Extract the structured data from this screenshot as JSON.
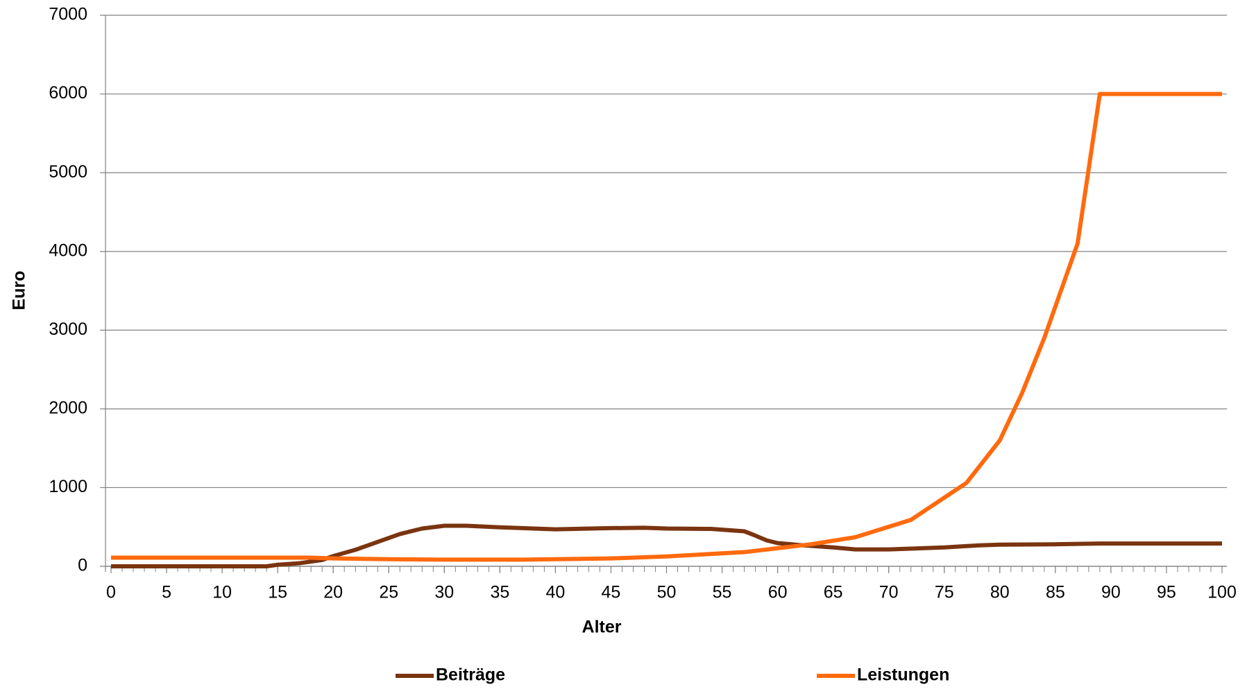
{
  "chart_data": {
    "type": "line",
    "x_label": "Alter",
    "y_label": "Euro",
    "xlim": [
      0,
      100
    ],
    "xticks": [
      0,
      5,
      10,
      15,
      20,
      25,
      30,
      35,
      40,
      45,
      50,
      55,
      60,
      65,
      70,
      75,
      80,
      85,
      90,
      95,
      100
    ],
    "ylim": [
      0,
      7000
    ],
    "yticks": [
      0,
      1000,
      2000,
      3000,
      4000,
      5000,
      6000,
      7000
    ],
    "grid": true,
    "legend": "bottom",
    "series": [
      {
        "name": "Beiträge",
        "color": "#7a3410",
        "x": [
          0,
          14,
          15,
          17,
          19,
          20,
          22,
          24,
          26,
          28,
          30,
          32,
          35,
          40,
          45,
          48,
          50,
          54,
          57,
          58,
          59,
          60,
          62,
          65,
          67,
          70,
          72,
          75,
          78,
          80,
          85,
          89,
          100
        ],
        "values": [
          0,
          0,
          20,
          40,
          80,
          130,
          210,
          310,
          410,
          480,
          515,
          515,
          495,
          470,
          485,
          490,
          480,
          475,
          445,
          390,
          330,
          295,
          270,
          240,
          215,
          215,
          225,
          240,
          265,
          275,
          280,
          290,
          290
        ]
      },
      {
        "name": "Leistungen",
        "color": "#ff6a0e",
        "x": [
          0,
          18,
          20,
          25,
          30,
          37,
          40,
          45,
          50,
          55,
          57,
          60,
          63,
          67,
          72,
          77,
          80,
          82,
          84,
          87,
          89,
          100
        ],
        "values": [
          110,
          110,
          100,
          90,
          85,
          85,
          90,
          100,
          125,
          165,
          180,
          230,
          280,
          370,
          590,
          1060,
          1600,
          2200,
          2900,
          4100,
          6000,
          6000
        ]
      }
    ]
  }
}
